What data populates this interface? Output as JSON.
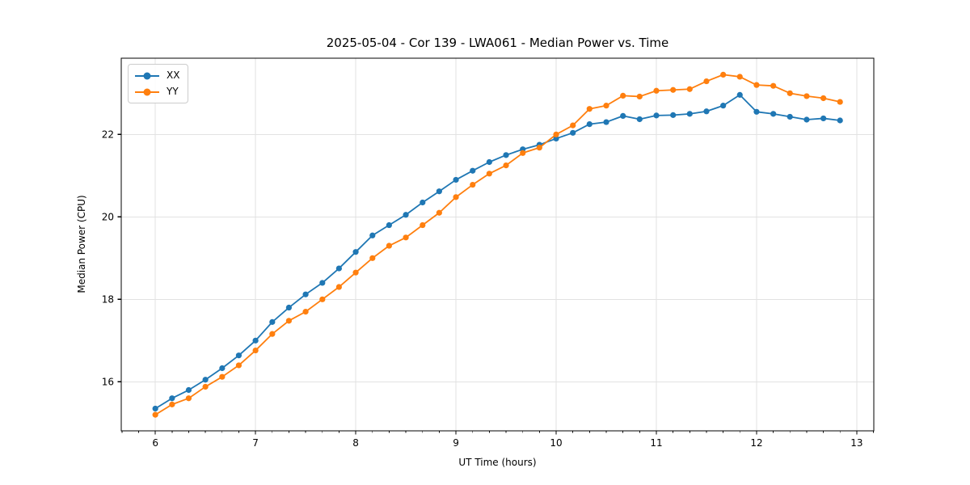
{
  "chart_data": {
    "type": "line",
    "title": "2025-05-04 - Cor 139 - LWA061 - Median Power vs. Time",
    "xlabel": "UT Time (hours)",
    "ylabel": "Median Power (CPU)",
    "xlim": [
      5.66,
      13.17
    ],
    "ylim": [
      14.81,
      23.85
    ],
    "xticks": [
      6,
      7,
      8,
      9,
      10,
      11,
      12,
      13
    ],
    "yticks": [
      16,
      18,
      20,
      22
    ],
    "x_minor_interval": 0.166667,
    "grid": true,
    "legend_position": "upper left",
    "axis_color": "#000000",
    "grid_color": "#e2e2e2",
    "x": [
      6.0,
      6.167,
      6.333,
      6.5,
      6.667,
      6.833,
      7.0,
      7.167,
      7.333,
      7.5,
      7.667,
      7.833,
      8.0,
      8.167,
      8.333,
      8.5,
      8.667,
      8.833,
      9.0,
      9.167,
      9.333,
      9.5,
      9.667,
      9.833,
      10.0,
      10.167,
      10.333,
      10.5,
      10.667,
      10.833,
      11.0,
      11.167,
      11.333,
      11.5,
      11.667,
      11.833,
      12.0,
      12.167,
      12.333,
      12.5,
      12.667,
      12.833
    ],
    "series": [
      {
        "name": "XX",
        "color": "#1f77b4",
        "values": [
          15.35,
          15.6,
          15.8,
          16.05,
          16.33,
          16.64,
          17.0,
          17.45,
          17.8,
          18.12,
          18.4,
          18.75,
          19.15,
          19.55,
          19.8,
          20.05,
          20.35,
          20.62,
          20.9,
          21.12,
          21.33,
          21.5,
          21.64,
          21.75,
          21.9,
          22.04,
          22.25,
          22.3,
          22.45,
          22.37,
          22.46,
          22.47,
          22.5,
          22.56,
          22.7,
          22.96,
          22.55,
          22.5,
          22.43,
          22.36,
          22.39,
          22.34
        ]
      },
      {
        "name": "YY",
        "color": "#ff7f0e",
        "values": [
          15.2,
          15.45,
          15.6,
          15.88,
          16.12,
          16.4,
          16.76,
          17.16,
          17.48,
          17.7,
          18.0,
          18.3,
          18.65,
          19.0,
          19.3,
          19.5,
          19.8,
          20.1,
          20.48,
          20.78,
          21.05,
          21.25,
          21.55,
          21.68,
          22.0,
          22.22,
          22.62,
          22.7,
          22.94,
          22.92,
          23.06,
          23.08,
          23.1,
          23.29,
          23.45,
          23.4,
          23.2,
          23.18,
          23.0,
          22.93,
          22.88,
          22.79
        ]
      }
    ]
  }
}
